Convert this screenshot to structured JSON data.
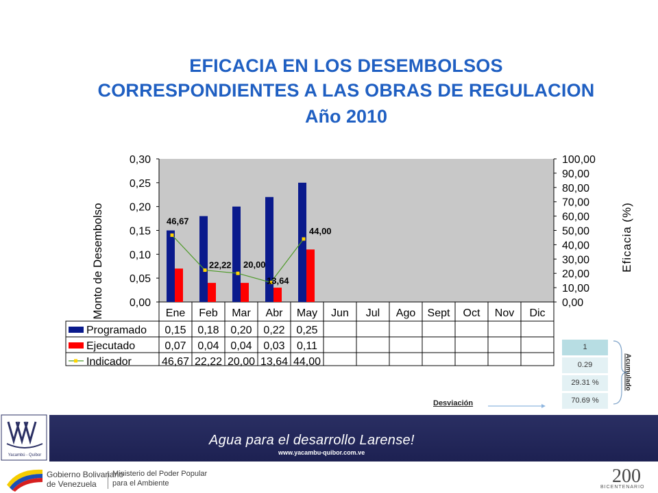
{
  "title": {
    "line1": "EFICACIA EN LOS DESEMBOLSOS",
    "line2": "CORRESPONDIENTES A LAS OBRAS DE REGULACION",
    "line3": "Año 2010"
  },
  "chart_data": {
    "type": "bar",
    "categories": [
      "Ene",
      "Feb",
      "Mar",
      "Abr",
      "May",
      "Jun",
      "Jul",
      "Ago",
      "Sept",
      "Oct",
      "Nov",
      "Dic"
    ],
    "series": [
      {
        "name": "Programado",
        "type": "bar",
        "color": "#0a1a8c",
        "values": [
          0.15,
          0.18,
          0.2,
          0.22,
          0.25,
          null,
          null,
          null,
          null,
          null,
          null,
          null
        ],
        "labels": [
          "0,15",
          "0,18",
          "0,20",
          "0,22",
          "0,25",
          "",
          "",
          "",
          "",
          "",
          "",
          ""
        ]
      },
      {
        "name": "Ejecutado",
        "type": "bar",
        "color": "#ff0000",
        "values": [
          0.07,
          0.04,
          0.04,
          0.03,
          0.11,
          null,
          null,
          null,
          null,
          null,
          null,
          null
        ],
        "labels": [
          "0,07",
          "0,04",
          "0,04",
          "0,03",
          "0,11",
          "",
          "",
          "",
          "",
          "",
          "",
          ""
        ]
      },
      {
        "name": "Indicador",
        "type": "line",
        "axis": "right",
        "color": "#4d9a28",
        "marker_color": "#ffd400",
        "values": [
          46.67,
          22.22,
          20.0,
          13.64,
          44.0,
          null,
          null,
          null,
          null,
          null,
          null,
          null
        ],
        "labels": [
          "46,67",
          "22,22",
          "20,00",
          "13,64",
          "44,00",
          "",
          "",
          "",
          "",
          "",
          "",
          ""
        ]
      }
    ],
    "ylabel": "Monto de Desembolso",
    "ylabel_right": "Eficacia (%)",
    "ylim": [
      0,
      0.3
    ],
    "ylim_right": [
      0,
      100
    ],
    "yticks": [
      "0,00",
      "0,05",
      "0,10",
      "0,15",
      "0,20",
      "0,25",
      "0,30"
    ],
    "yticks_right": [
      "0,00",
      "10,00",
      "20,00",
      "30,00",
      "40,00",
      "50,00",
      "60,00",
      "70,00",
      "80,00",
      "90,00",
      "100,00"
    ],
    "grid": false,
    "legend": "data-table"
  },
  "summary": {
    "items": [
      "1",
      "0.29",
      "29.31 %",
      "70.69 %"
    ],
    "accum_label": "Acumulado",
    "deviation_label": "Desviación"
  },
  "footer": {
    "slogan": "Agua para el desarrollo Larense!",
    "website": "www.yacambu-quibor.com.ve",
    "logo_text": "Yacambú - Quíbor",
    "gov_line1": "Gobierno Bolivariano",
    "gov_line2": "de Venezuela",
    "ministry_line1": "Ministerio del Poder Popular",
    "ministry_line2": "para el Ambiente",
    "bicentenario": "BICENTENARIO"
  },
  "colors": {
    "title": "#1f5fc2",
    "plot_bg": "#c8c8c8",
    "footer_band": "#23285a"
  }
}
